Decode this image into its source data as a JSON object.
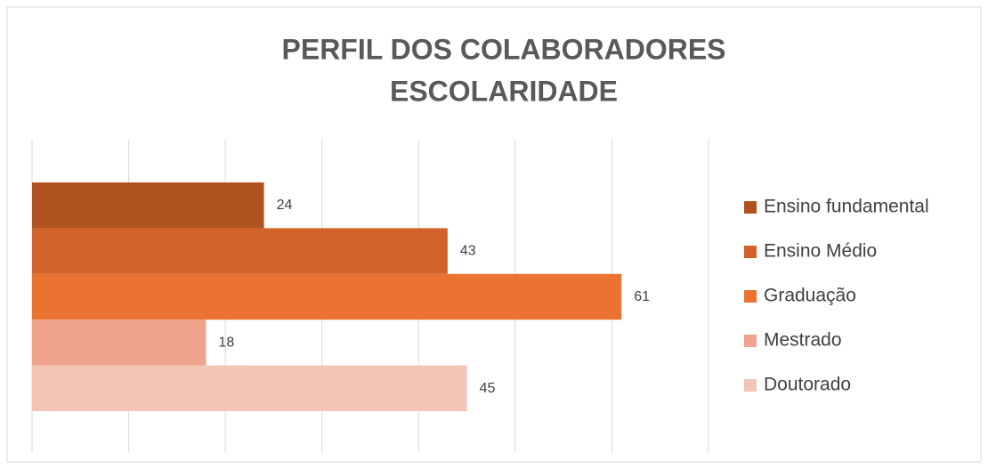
{
  "chart_data": {
    "type": "bar",
    "orientation": "horizontal",
    "title": [
      "PERFIL DOS COLABORADORES",
      "ESCOLARIDADE"
    ],
    "categories": [
      null
    ],
    "series": [
      {
        "name": "Ensino fundamental",
        "color": "#B05220",
        "values": [
          24
        ]
      },
      {
        "name": "Ensino Médio",
        "color": "#D0622A",
        "values": [
          43
        ]
      },
      {
        "name": "Graduação",
        "color": "#EB7331",
        "values": [
          61
        ]
      },
      {
        "name": "Mestrado",
        "color": "#F0A38C",
        "values": [
          18
        ]
      },
      {
        "name": "Doutorado",
        "color": "#F3C5B7",
        "values": [
          45
        ]
      }
    ],
    "xlim": [
      0,
      70
    ],
    "xticks": [
      0,
      10,
      20,
      30,
      40,
      50,
      60,
      70
    ],
    "grid": true,
    "legend": "right"
  }
}
